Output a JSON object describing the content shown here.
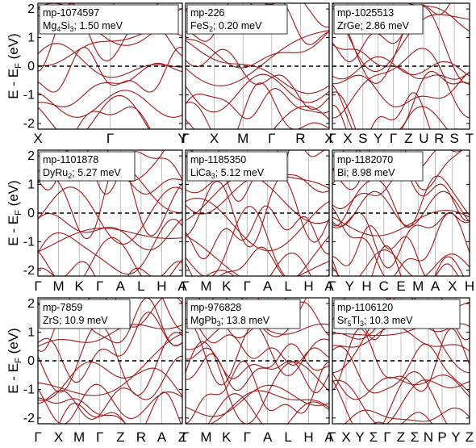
{
  "style": {
    "band_color": "#a01818"
  },
  "chart_data": [
    {
      "type": "line",
      "legend_id": "mp-1074597",
      "legend_formula": "Mg",
      "legend_sub": "4",
      "legend_formula2": "Si",
      "legend_sub2": "3",
      "legend_energy": "; 1.50 meV",
      "ylim": [
        -2.2,
        2.2
      ],
      "yticks": [
        "-2",
        "-1",
        "0",
        "1",
        "2"
      ],
      "kpoints": [
        "X",
        "Γ",
        "Y"
      ],
      "fermi_level": 0
    },
    {
      "type": "line",
      "legend_id": "mp-226",
      "legend_formula": "FeS",
      "legend_sub": "2",
      "legend_formula2": "",
      "legend_sub2": "",
      "legend_energy": "; 0.20 meV",
      "ylim": [
        -2.2,
        2.2
      ],
      "yticks": [
        "-2",
        "-1",
        "0",
        "1",
        "2"
      ],
      "kpoints": [
        "Γ",
        "X",
        "M",
        "Γ",
        "R",
        "X"
      ],
      "fermi_level": 0
    },
    {
      "type": "line",
      "legend_id": "mp-1025513",
      "legend_formula": "ZrGe",
      "legend_sub": "",
      "legend_formula2": "",
      "legend_sub2": "",
      "legend_energy": "; 2.86 meV",
      "ylim": [
        -2.2,
        2.2
      ],
      "yticks": [
        "-2",
        "-1",
        "0",
        "1",
        "2"
      ],
      "kpoints": [
        "Γ",
        "X",
        "S",
        "Y",
        "Γ",
        "Z",
        "U",
        "R",
        "S",
        "T"
      ],
      "fermi_level": 0
    },
    {
      "type": "line",
      "legend_id": "mp-1101878",
      "legend_formula": "DyRu",
      "legend_sub": "2",
      "legend_formula2": "",
      "legend_sub2": "",
      "legend_energy": "; 5.27 meV",
      "ylim": [
        -2.2,
        2.2
      ],
      "yticks": [
        "-2",
        "-1",
        "0",
        "1",
        "2"
      ],
      "kpoints": [
        "Γ",
        "M",
        "K",
        "Γ",
        "A",
        "L",
        "H",
        "A"
      ],
      "fermi_level": 0
    },
    {
      "type": "line",
      "legend_id": "mp-1185350",
      "legend_formula": "LiCa",
      "legend_sub": "3",
      "legend_formula2": "",
      "legend_sub2": "",
      "legend_energy": "; 5.12 meV",
      "ylim": [
        -2.2,
        2.2
      ],
      "yticks": [
        "-2",
        "-1",
        "0",
        "1",
        "2"
      ],
      "kpoints": [
        "Γ",
        "M",
        "K",
        "Γ",
        "A",
        "L",
        "H",
        "A"
      ],
      "fermi_level": 0
    },
    {
      "type": "line",
      "legend_id": "mp-1182070",
      "legend_formula": "Bi",
      "legend_sub": "",
      "legend_formula2": "",
      "legend_sub2": "",
      "legend_energy": "; 8.98 meV",
      "ylim": [
        -2.2,
        2.2
      ],
      "yticks": [
        "-2",
        "-1",
        "0",
        "1",
        "2"
      ],
      "kpoints": [
        "Γ",
        "Y",
        "H",
        "C",
        "E",
        "M",
        "A",
        "X",
        "H"
      ],
      "fermi_level": 0
    },
    {
      "type": "line",
      "legend_id": "mp-7859",
      "legend_formula": "ZrS",
      "legend_sub": "",
      "legend_formula2": "",
      "legend_sub2": "",
      "legend_energy": "; 10.9 meV",
      "ylim": [
        -2.2,
        2.2
      ],
      "yticks": [
        "-2",
        "-1",
        "0",
        "1",
        "2"
      ],
      "kpoints": [
        "Γ",
        "X",
        "M",
        "Γ",
        "Z",
        "R",
        "A",
        "Z"
      ],
      "fermi_level": 0
    },
    {
      "type": "line",
      "legend_id": "mp-976828",
      "legend_formula": "MgPb",
      "legend_sub": "3",
      "legend_formula2": "",
      "legend_sub2": "",
      "legend_energy": "; 13.8 meV",
      "ylim": [
        -2.2,
        2.2
      ],
      "yticks": [
        "-2",
        "-1",
        "0",
        "1",
        "2"
      ],
      "kpoints": [
        "Γ",
        "M",
        "K",
        "Γ",
        "A",
        "L",
        "H",
        "A"
      ],
      "fermi_level": 0
    },
    {
      "type": "line",
      "legend_id": "mp-1106120",
      "legend_formula": "Sr",
      "legend_sub": "5",
      "legend_formula2": "Tl",
      "legend_sub2": "3",
      "legend_energy": "; 10.3 meV",
      "ylim": [
        -2.2,
        2.2
      ],
      "yticks": [
        "-2",
        "-1",
        "0",
        "1",
        "2"
      ],
      "kpoints": [
        "Γ",
        "X",
        "Y",
        "Σ",
        "Γ",
        "Z",
        "Σ",
        "N",
        "P",
        "Y",
        "Z"
      ],
      "fermi_level": 0
    }
  ],
  "y_axis_label": {
    "main": "E - E",
    "sub": "F",
    "tail": " (eV)"
  }
}
